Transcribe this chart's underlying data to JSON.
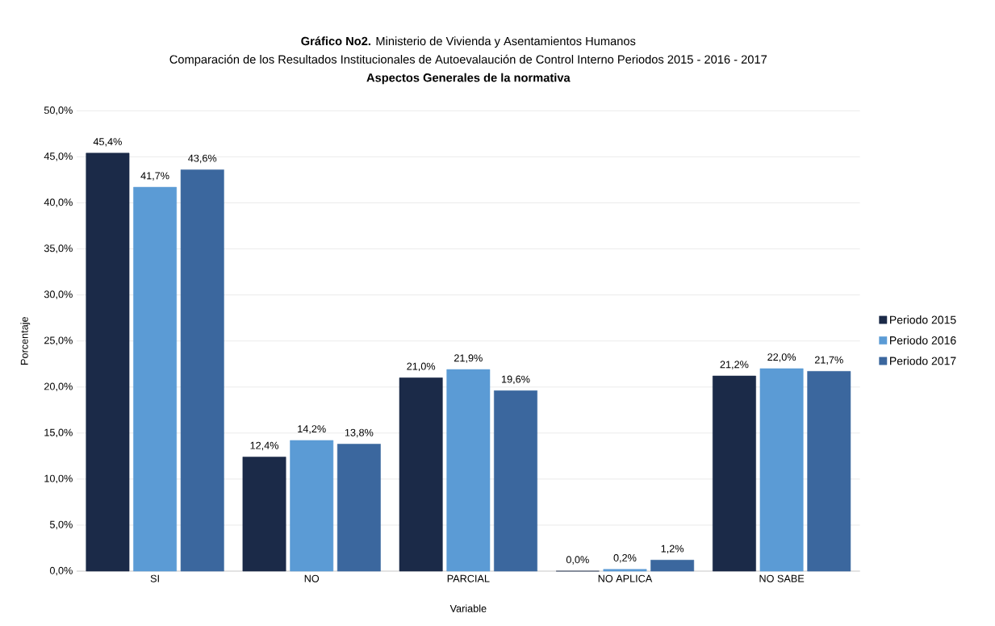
{
  "chart_data": {
    "type": "bar",
    "title": "**Gráfico No2.** Ministerio de Vivienda y Asentamientos Humanos",
    "subtitle": "Comparación de los Resultados Institucionales de Autoevalaución de Control Interno Periodos 2015 - 2016 - 2017",
    "annotations": [
      "Aspectos Generales de la normativa"
    ],
    "xlabel": "Variable",
    "ylabel": "Porcentaje",
    "categories": [
      "SI",
      "NO",
      "PARCIAL",
      "NO APLICA",
      "NO SABE"
    ],
    "series": [
      {
        "name": "Periodo 2015",
        "color": "#1b2a48",
        "values": [
          45.4,
          12.4,
          21.0,
          0.0,
          21.2
        ],
        "value_labels": [
          "45,4%",
          "12,4%",
          "21,0%",
          "0,0%",
          "21,2%"
        ]
      },
      {
        "name": "Periodo 2016",
        "color": "#5b9bd5",
        "values": [
          41.7,
          14.2,
          21.9,
          0.2,
          22.0
        ],
        "value_labels": [
          "41,7%",
          "14,2%",
          "21,9%",
          "0,2%",
          "22,0%"
        ]
      },
      {
        "name": "Periodo 2017",
        "color": "#3b679e",
        "values": [
          43.6,
          13.8,
          19.6,
          1.2,
          21.7
        ],
        "value_labels": [
          "43,6%",
          "13,8%",
          "19,6%",
          "1,2%",
          "21,7%"
        ]
      }
    ],
    "ylim": [
      0,
      50
    ],
    "yticks": [
      {
        "value": 0,
        "label": "0,0%"
      },
      {
        "value": 5,
        "label": "5,0%"
      },
      {
        "value": 10,
        "label": "10,0%"
      },
      {
        "value": 15,
        "label": "15,0%"
      },
      {
        "value": 20,
        "label": "20,0%"
      },
      {
        "value": 25,
        "label": "25,0%"
      },
      {
        "value": 30,
        "label": "30,0%"
      },
      {
        "value": 35,
        "label": "35,0%"
      },
      {
        "value": 40,
        "label": "40,0%"
      },
      {
        "value": 45,
        "label": "45,0%"
      },
      {
        "value": 50,
        "label": "50,0%"
      }
    ],
    "grid": "y",
    "legend": "right"
  }
}
